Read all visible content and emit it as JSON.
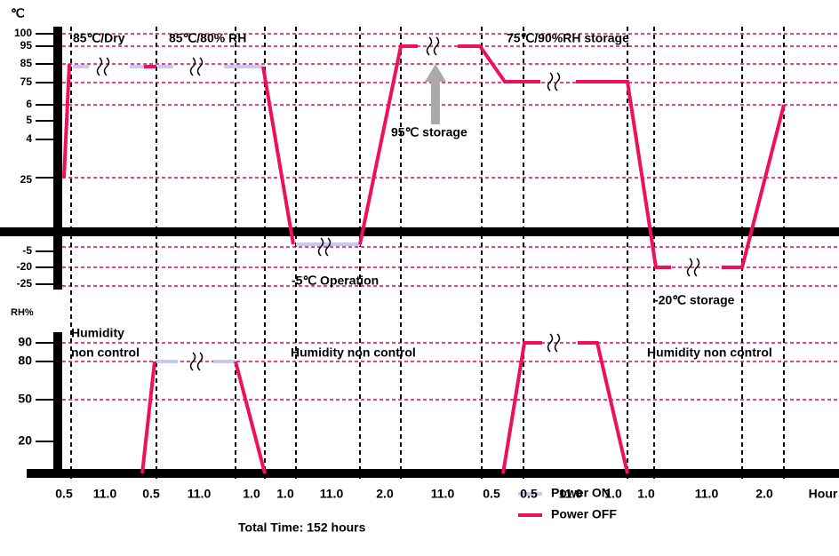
{
  "unit_temp": "℃",
  "temp_labels": [
    "100",
    "95",
    "85",
    "75",
    "6",
    "5",
    "4",
    "25",
    "-5",
    "-20",
    "-25"
  ],
  "unit_rh": "RH%",
  "rh_labels": [
    "90",
    "80",
    "50",
    "20"
  ],
  "annotations": {
    "dry": "85℃/Dry",
    "rh": "85℃/80% RH",
    "storage75": "75℃/90%RH storage",
    "storage95": "95℃ storage",
    "operation": "-5℃ Operation",
    "storage20": "-20℃ storage",
    "hum1a": "Humidity",
    "hum1b": "non control",
    "hum2": "Humidity non control",
    "hum3": "Humidity non control"
  },
  "x_labels": [
    "0.5",
    "11.0",
    "0.5",
    "11.0",
    "1.0",
    "1.0",
    "11.0",
    "2.0",
    "11.0",
    "0.5",
    "0.5",
    "11.0",
    "1.0",
    "1.0",
    "11.0",
    "2.0",
    "Hour"
  ],
  "total": "Total Time: 152 hours",
  "legend": [
    "Power ON",
    "Power OFF"
  ]
}
